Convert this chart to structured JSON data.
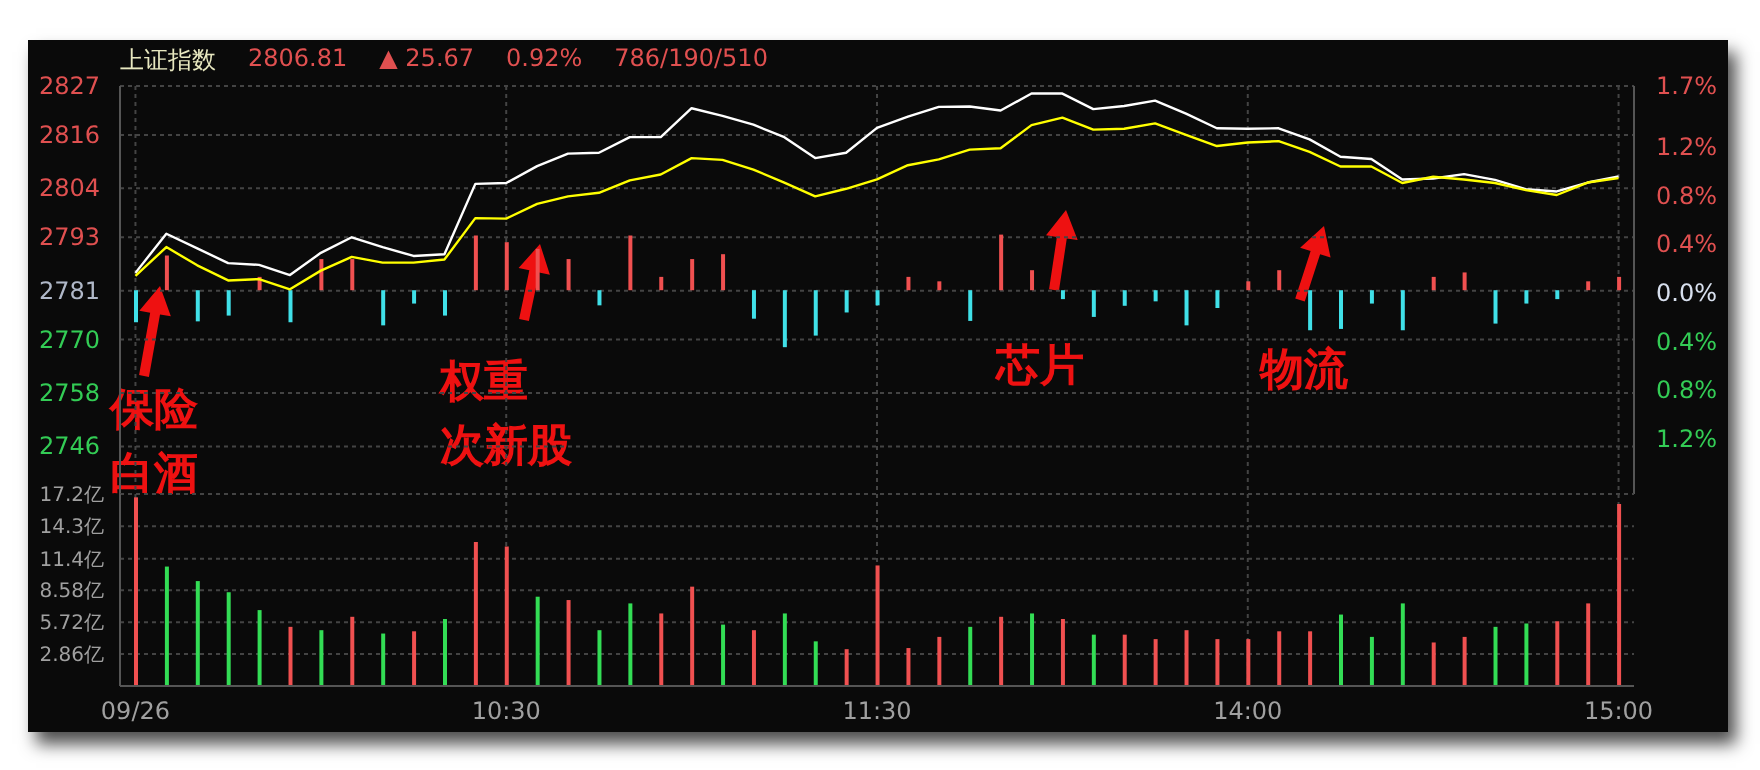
{
  "chart_data": [
    {
      "type": "line",
      "title": "上证指数",
      "annotations": [
        "2806.81",
        "▲ 25.67",
        "0.92%",
        "786/190/510",
        "保险",
        "白酒",
        "权重",
        "次新股",
        "芯片",
        "物流"
      ],
      "categories": [
        null,
        null,
        null,
        null,
        null,
        null,
        null,
        null,
        null,
        null,
        null,
        null,
        null,
        null,
        null,
        null,
        null,
        null,
        null,
        null,
        null,
        null,
        null,
        null,
        null,
        null,
        null,
        null,
        null,
        null,
        null,
        null,
        null,
        null,
        null,
        null,
        null,
        null,
        null,
        null,
        null,
        null,
        null,
        null,
        null,
        null,
        null,
        null,
        null
      ],
      "ylim": [
        2735.3,
        2827
      ],
      "yticks": [
        2827,
        2816,
        2804,
        2793,
        2781,
        2770,
        2758,
        2746
      ],
      "y2lim": [
        -1.65,
        1.7
      ],
      "y2ticks": [
        {
          "value": 1.7,
          "label": "1.7%"
        },
        {
          "value": 1.2,
          "label": "1.2%"
        },
        {
          "value": 0.8,
          "label": "0.8%"
        },
        {
          "value": 0.4,
          "label": "0.4%"
        },
        {
          "value": 0,
          "label": "0.0%"
        },
        {
          "value": -0.4,
          "label": "0.4%"
        },
        {
          "value": -0.8,
          "label": "0.8%"
        },
        {
          "value": -1.2,
          "label": "1.2%"
        }
      ],
      "grid": true,
      "tick_labels": "y",
      "series": [
        {
          "color": "#ffffff",
          "values": [
            2785.0,
            2793.8,
            2790.5,
            2787.2,
            2786.8,
            2784.5,
            2789.5,
            2793.0,
            2790.8,
            2788.8,
            2789.2,
            2805.0,
            2805.2,
            2809.0,
            2811.8,
            2812.0,
            2815.5,
            2815.5,
            2822.0,
            2820.3,
            2818.3,
            2815.5,
            2810.8,
            2812.0,
            2817.6,
            2820.1,
            2822.3,
            2822.4,
            2821.5,
            2825.3,
            2825.3,
            2821.8,
            2822.5,
            2823.7,
            2820.8,
            2817.5,
            2817.4,
            2817.5,
            2815.0,
            2811.1,
            2810.6,
            2806.0,
            2806.2,
            2807.2,
            2805.9,
            2803.8,
            2803.3,
            2805.3,
            2806.7
          ]
        },
        {
          "color": "#ffff00",
          "values": [
            2784.3,
            2790.8,
            2786.7,
            2783.3,
            2783.6,
            2781.3,
            2785.5,
            2788.6,
            2787.3,
            2787.3,
            2788.0,
            2797.3,
            2797.2,
            2800.5,
            2802.2,
            2803.0,
            2805.8,
            2807.1,
            2810.8,
            2810.4,
            2808.2,
            2805.3,
            2802.2,
            2803.9,
            2806.0,
            2809.2,
            2810.5,
            2812.7,
            2813.0,
            2818.2,
            2819.9,
            2817.2,
            2817.4,
            2818.6,
            2816.0,
            2813.5,
            2814.3,
            2814.6,
            2812.2,
            2808.9,
            2808.9,
            2805.2,
            2806.6,
            2806.0,
            2805.2,
            2803.6,
            2802.5,
            2805.3,
            2806.3
          ]
        },
        {
          "type": "bar",
          "base": [
            2781.1,
            2781.1,
            2781.1,
            2781.1,
            2781.1,
            2781.1,
            2781.1,
            2781.1,
            2781.1,
            2781.1,
            2781.1,
            2781.1,
            2781.1,
            2781.1,
            2781.1,
            2781.1,
            2781.1,
            2781.1,
            2781.1,
            2781.1,
            2781.1,
            2781.1,
            2781.1,
            2781.1,
            2781.1,
            2781.1,
            2781.1,
            2781.1,
            2781.1,
            2781.1,
            2781.1,
            2781.1,
            2781.1,
            2781.1,
            2781.1,
            2781.1,
            2781.1,
            2781.1,
            2781.1,
            2781.1,
            2781.1,
            2781.1,
            2781.1,
            2781.1,
            2781.1,
            2781.1,
            2781.1,
            2781.1,
            2781.1
          ],
          "values": [
            -7.2,
            7.8,
            -7.0,
            -5.7,
            3.0,
            -7.2,
            7.0,
            7.0,
            -7.9,
            -3.0,
            -5.7,
            12.3,
            10.8,
            9.3,
            7.0,
            -3.4,
            12.3,
            3.0,
            7.0,
            8.1,
            -6.4,
            -12.8,
            -10.2,
            -5.0,
            -3.4,
            3.0,
            2.0,
            -6.9,
            12.5,
            4.5,
            -2.0,
            -6.0,
            -3.5,
            -2.5,
            -7.9,
            -4.0,
            2.0,
            4.5,
            -9.0,
            -8.7,
            -3.0,
            -9.0,
            3.0,
            4.0,
            -7.5,
            -3.0,
            -2.0,
            2.0,
            3.0
          ],
          "colors": [
            "#40e0e8",
            "#f05050",
            "#40e0e8",
            "#40e0e8",
            "#f05050",
            "#40e0e8",
            "#f05050",
            "#f05050",
            "#40e0e8",
            "#40e0e8",
            "#40e0e8",
            "#f05050",
            "#f05050",
            "#f05050",
            "#f05050",
            "#40e0e8",
            "#f05050",
            "#f05050",
            "#f05050",
            "#f05050",
            "#40e0e8",
            "#40e0e8",
            "#40e0e8",
            "#40e0e8",
            "#40e0e8",
            "#f05050",
            "#f05050",
            "#40e0e8",
            "#f05050",
            "#f05050",
            "#40e0e8",
            "#40e0e8",
            "#40e0e8",
            "#40e0e8",
            "#40e0e8",
            "#40e0e8",
            "#f05050",
            "#f05050",
            "#40e0e8",
            "#40e0e8",
            "#40e0e8",
            "#40e0e8",
            "#f05050",
            "#f05050",
            "#40e0e8",
            "#40e0e8",
            "#40e0e8",
            "#f05050",
            "#f05050"
          ]
        }
      ]
    },
    {
      "type": "bar",
      "categories": [
        "09/26",
        null,
        null,
        null,
        null,
        null,
        null,
        null,
        null,
        null,
        null,
        null,
        "10:30",
        null,
        null,
        null,
        null,
        null,
        null,
        null,
        null,
        null,
        null,
        null,
        "11:30",
        null,
        null,
        null,
        null,
        null,
        null,
        null,
        null,
        null,
        null,
        null,
        "14:00",
        null,
        null,
        null,
        null,
        null,
        null,
        null,
        null,
        null,
        null,
        null,
        "15:00"
      ],
      "ylim": [
        0,
        17.2
      ],
      "yticks": [
        {
          "value": 2.86,
          "label": "2.86亿"
        },
        {
          "value": 5.72,
          "label": "5.72亿"
        },
        {
          "value": 8.58,
          "label": "8.58亿"
        },
        {
          "value": 11.4,
          "label": "11.4亿"
        },
        {
          "value": 14.3,
          "label": "14.3亿"
        },
        {
          "value": 17.2,
          "label": "17.2亿"
        }
      ],
      "grid": true,
      "values": [
        16.9,
        10.7,
        9.4,
        8.4,
        6.8,
        5.3,
        5.0,
        6.2,
        4.7,
        4.9,
        6.0,
        12.9,
        12.5,
        8.0,
        7.7,
        5.0,
        7.4,
        6.5,
        8.9,
        5.5,
        5.0,
        6.5,
        4.0,
        3.3,
        10.8,
        3.4,
        4.4,
        5.3,
        6.2,
        6.5,
        6.0,
        4.6,
        4.6,
        4.2,
        5.0,
        4.2,
        4.2,
        4.9,
        4.9,
        6.4,
        4.4,
        7.4,
        3.9,
        4.4,
        5.3,
        5.6,
        5.8,
        7.4,
        16.3
      ],
      "colors": [
        "#f05050",
        "#33dd55",
        "#33dd55",
        "#33dd55",
        "#33dd55",
        "#f05050",
        "#33dd55",
        "#f05050",
        "#33dd55",
        "#f05050",
        "#33dd55",
        "#f05050",
        "#f05050",
        "#33dd55",
        "#f05050",
        "#33dd55",
        "#33dd55",
        "#f05050",
        "#f05050",
        "#33dd55",
        "#f05050",
        "#33dd55",
        "#33dd55",
        "#f05050",
        "#f05050",
        "#f05050",
        "#f05050",
        "#33dd55",
        "#f05050",
        "#33dd55",
        "#f05050",
        "#33dd55",
        "#f05050",
        "#f05050",
        "#f05050",
        "#f05050",
        "#f05050",
        "#f05050",
        "#f05050",
        "#33dd55",
        "#33dd55",
        "#33dd55",
        "#f05050",
        "#f05050",
        "#33dd55",
        "#33dd55",
        "#f05050",
        "#f05050",
        "#f05050"
      ]
    }
  ]
}
